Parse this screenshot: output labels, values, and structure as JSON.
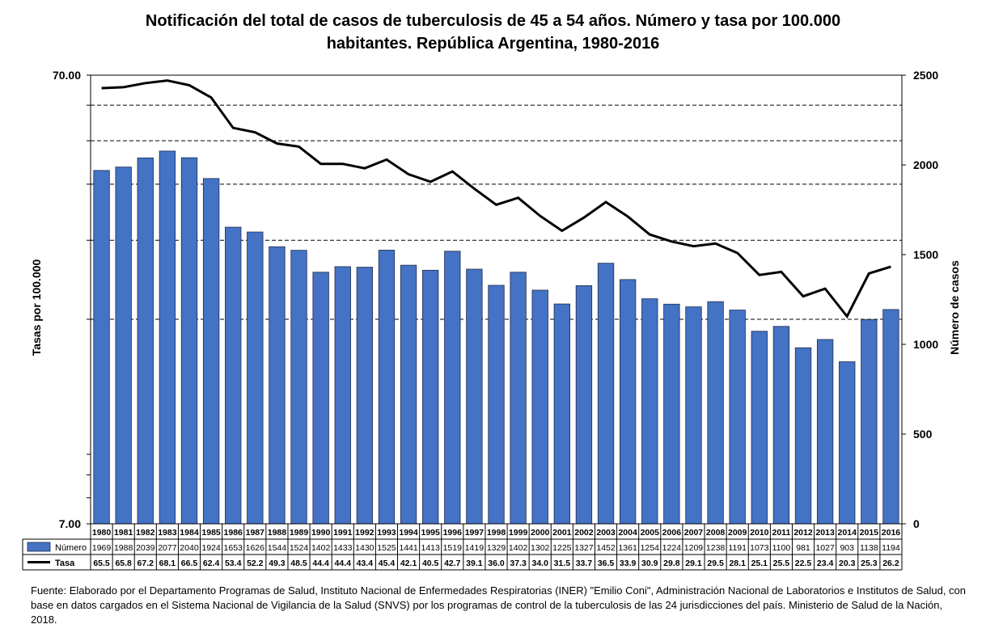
{
  "title_line1": "Notificación del total de casos de tuberculosis de 45 a 54 años. Número y tasa por 100.000",
  "title_line2": "habitantes. República Argentina, 1980-2016",
  "footer": "Fuente: Elaborado por el Departamento Programas de Salud, Instituto Nacional de Enfermedades Respiratorias (INER) \"Emilio Coni\", Administración Nacional de Laboratorios e Institutos de Salud, con base en datos cargados  en el Sistema Nacional de Vigilancia de la Salud (SNVS) por los programas de control de la tuberculosis de las 24  jurisdicciones del país. Ministerio de Salud de la Nación, 2018.",
  "colors": {
    "bar": "#4472C4",
    "line": "#000000"
  },
  "chart_data": {
    "type": "bar",
    "categories": [
      "1980",
      "1981",
      "1982",
      "1983",
      "1984",
      "1985",
      "1986",
      "1987",
      "1988",
      "1989",
      "1990",
      "1991",
      "1992",
      "1993",
      "1994",
      "1995",
      "1996",
      "1997",
      "1998",
      "1999",
      "2000",
      "2001",
      "2002",
      "2003",
      "2004",
      "2005",
      "2006",
      "2007",
      "2008",
      "2009",
      "2010",
      "2011",
      "2012",
      "2013",
      "2014",
      "2015",
      "2016"
    ],
    "series": [
      {
        "name": "Número",
        "type": "bar",
        "axis": "right",
        "values": [
          1969,
          1988,
          2039,
          2077,
          2040,
          1924,
          1653,
          1626,
          1544,
          1524,
          1402,
          1433,
          1430,
          1525,
          1441,
          1413,
          1519,
          1419,
          1329,
          1402,
          1302,
          1225,
          1327,
          1452,
          1361,
          1254,
          1224,
          1209,
          1238,
          1191,
          1073,
          1100,
          981,
          1027,
          903,
          1138,
          1194
        ]
      },
      {
        "name": "Tasa",
        "type": "line",
        "axis": "left",
        "values": [
          65.5,
          65.8,
          67.2,
          68.1,
          66.5,
          62.4,
          53.4,
          52.2,
          49.3,
          48.5,
          44.4,
          44.4,
          43.4,
          45.4,
          42.1,
          40.5,
          42.7,
          39.1,
          36.0,
          37.3,
          34.0,
          31.5,
          33.7,
          36.5,
          33.9,
          30.9,
          29.8,
          29.1,
          29.5,
          28.1,
          25.1,
          25.5,
          22.5,
          23.4,
          20.3,
          25.3,
          26.2
        ]
      }
    ],
    "ylabel_left": "Tasas por 100.000",
    "ylabel_right": "Número de casos",
    "left_axis": {
      "scale": "log",
      "range": [
        7,
        70
      ],
      "tick_labels": [
        "70.00",
        "7.00"
      ]
    },
    "right_axis": {
      "range": [
        0,
        2500
      ],
      "ticks": [
        "2500",
        "2000",
        "1500",
        "1000",
        "500",
        "0"
      ]
    },
    "grid": "dashed horizontal at log minor ticks"
  }
}
